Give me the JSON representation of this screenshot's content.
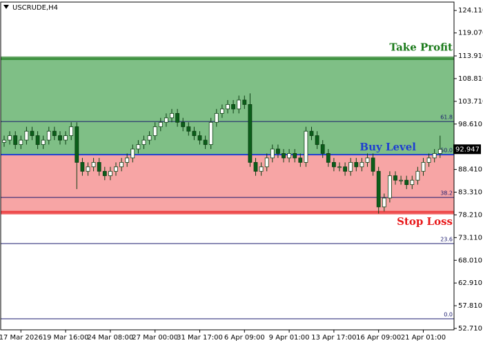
{
  "chart_data": {
    "type": "candlestick",
    "title": "USCRUDE,H4",
    "categories": [
      null,
      null,
      null,
      "17 Mar 2026",
      null,
      null,
      null,
      null,
      null,
      null,
      null,
      "19 Mar 16:00",
      null,
      null,
      null,
      null,
      null,
      null,
      null,
      "24 Mar 08:00",
      null,
      null,
      null,
      null,
      null,
      null,
      null,
      "27 Mar 00:00",
      null,
      null,
      null,
      null,
      null,
      null,
      null,
      "31 Mar 17:00",
      null,
      null,
      null,
      null,
      null,
      null,
      null,
      "6 Apr 09:00",
      null,
      null,
      null,
      null,
      null,
      null,
      null,
      "9 Apr 01:00",
      null,
      null,
      null,
      null,
      null,
      null,
      null,
      "13 Apr 17:00",
      null,
      null,
      null,
      null,
      null,
      null,
      null,
      "16 Apr 09:00",
      null,
      null,
      null,
      null,
      null,
      null,
      null,
      "21 Apr 01:00",
      null,
      null,
      null
    ],
    "open": [
      94.5,
      95,
      96,
      94,
      95,
      97,
      96,
      94,
      95,
      97,
      96,
      95,
      96,
      98,
      90,
      88,
      89,
      90,
      88,
      87,
      88,
      89,
      90,
      91,
      93,
      94,
      95,
      96,
      98,
      99,
      100,
      101,
      99,
      98,
      97,
      96,
      95,
      94,
      99,
      101,
      102,
      103,
      102,
      104,
      103,
      90,
      88,
      89,
      91,
      93,
      92,
      91,
      92,
      91,
      90,
      97,
      96,
      94,
      92,
      90,
      89,
      89,
      88,
      90,
      89,
      90,
      91,
      88,
      80,
      82,
      87,
      86,
      86,
      85,
      86,
      88,
      90,
      91,
      92
    ],
    "high": [
      96,
      97,
      97,
      96,
      98,
      98,
      97,
      96,
      98,
      98,
      97,
      97,
      99,
      99,
      91,
      90,
      91,
      91,
      89,
      89,
      90,
      91,
      92,
      94,
      95,
      96,
      97,
      99,
      100,
      101,
      102,
      102,
      100,
      99,
      98,
      97,
      96,
      100,
      102,
      103,
      104,
      104,
      105,
      105,
      105.5,
      91,
      90,
      92,
      94,
      94,
      93,
      93,
      93,
      92,
      98,
      98,
      97,
      95,
      93,
      91,
      90,
      90,
      91,
      91,
      91,
      92,
      92,
      89,
      83,
      88,
      88,
      87,
      87,
      87,
      89,
      91,
      92,
      93,
      96
    ],
    "low": [
      93.5,
      94,
      93,
      93,
      94,
      95,
      93,
      93,
      94,
      95,
      94,
      94,
      95,
      84,
      87,
      87,
      88,
      87,
      86,
      86,
      87,
      88,
      89,
      90,
      92,
      93,
      94,
      95,
      97,
      98,
      99,
      98,
      97,
      96,
      95,
      94,
      93,
      93,
      98,
      100,
      101,
      101,
      101,
      102,
      89,
      87,
      87,
      88,
      90,
      91,
      90,
      90,
      90,
      89,
      89,
      95,
      93,
      91,
      89,
      88,
      88,
      87,
      87,
      88,
      88,
      89,
      87,
      78.5,
      79,
      81,
      85,
      85,
      84,
      84,
      85,
      87,
      89,
      90,
      91
    ],
    "close": [
      95,
      96,
      94,
      95,
      97,
      96,
      94,
      95,
      97,
      96,
      95,
      96,
      98,
      90,
      88,
      89,
      90,
      88,
      87,
      88,
      89,
      90,
      91,
      93,
      94,
      95,
      96,
      98,
      99,
      100,
      101,
      99,
      98,
      97,
      96,
      95,
      94,
      99,
      101,
      102,
      103,
      102,
      104,
      103,
      90,
      88,
      89,
      91,
      93,
      92,
      91,
      92,
      91,
      90,
      97,
      96,
      94,
      92,
      90,
      89,
      89,
      88,
      90,
      89,
      90,
      91,
      88,
      80,
      82,
      87,
      86,
      86,
      85,
      86,
      88,
      90,
      91,
      92,
      92.947
    ],
    "up_color": "#ffffff",
    "down_color": "#0b5e1a",
    "wick_color": "#0b3d12",
    "ylim": [
      52.4,
      126.0
    ],
    "yticks": [
      {
        "value": 124.11,
        "label": "124.110"
      },
      {
        "value": 119.07,
        "label": "119.070"
      },
      {
        "value": 113.91,
        "label": "113.910"
      },
      {
        "value": 108.81,
        "label": "108.810"
      },
      {
        "value": 103.71,
        "label": "103.710"
      },
      {
        "value": 98.61,
        "label": "98.610"
      },
      {
        "value": 88.41,
        "label": "88.410"
      },
      {
        "value": 83.31,
        "label": "83.310"
      },
      {
        "value": 78.21,
        "label": "78.210"
      },
      {
        "value": 73.11,
        "label": "73.110"
      },
      {
        "value": 68.01,
        "label": "68.010"
      },
      {
        "value": 62.91,
        "label": "62.910"
      },
      {
        "value": 57.81,
        "label": "57.810"
      },
      {
        "value": 52.71,
        "label": "52.710"
      }
    ],
    "current_price": 92.947,
    "take_profit": {
      "label": "Take Profit",
      "value": 113.4,
      "color": "#1a7a1a"
    },
    "buy_level": {
      "label": "Buy Level",
      "value": 91.74,
      "color": "#1f3fd1"
    },
    "stop_loss": {
      "label": "Stop Loss",
      "value": 78.73,
      "color": "#e8191b"
    },
    "profit_zone_color": "#7fbf86",
    "loss_zone_color": "#f7a5a5",
    "fib_levels": [
      {
        "value": 99.17,
        "label": "61.8"
      },
      {
        "value": 91.74,
        "label": "50.0"
      },
      {
        "value": 82.14,
        "label": "38.2"
      },
      {
        "value": 71.76,
        "label": "23.6"
      },
      {
        "value": 54.88,
        "label": "0.0"
      }
    ],
    "fib_color": "#1a1a6e"
  }
}
